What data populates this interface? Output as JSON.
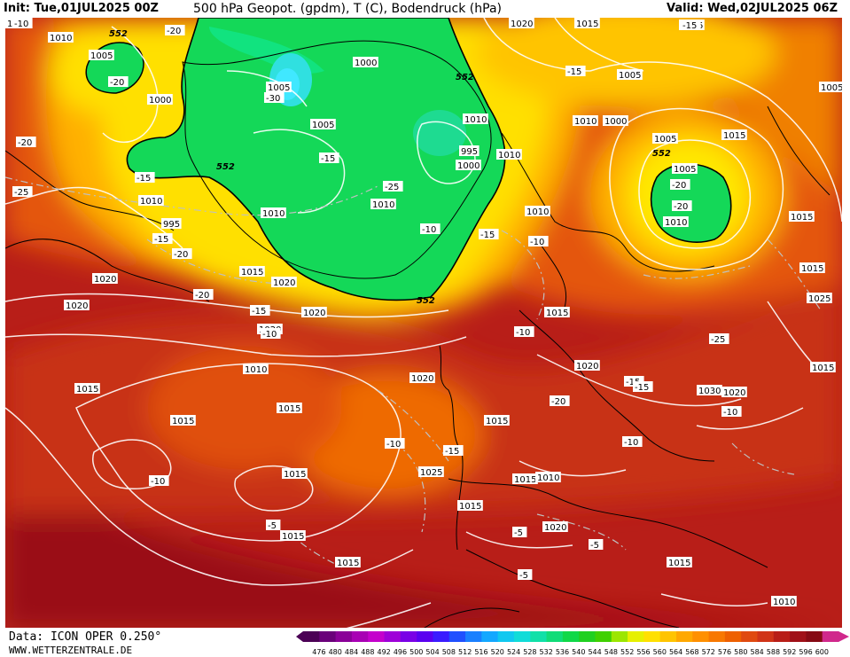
{
  "header": {
    "init": "Init: Tue,01JUL2025 00Z",
    "title": "500 hPa Geopot. (gpdm), T (C), Bodendruck (hPa)",
    "valid": "Valid: Wed,02JUL2025 06Z"
  },
  "footer": {
    "data_source": "Data: ICON OPER 0.250°",
    "website": "WWW.WETTERZENTRALE.DE"
  },
  "colorscale": {
    "ticks": [
      "476",
      "480",
      "484",
      "488",
      "492",
      "496",
      "500",
      "504",
      "508",
      "512",
      "516",
      "520",
      "524",
      "528",
      "532",
      "536",
      "540",
      "544",
      "548",
      "552",
      "556",
      "560",
      "564",
      "568",
      "572",
      "576",
      "580",
      "584",
      "588",
      "592",
      "596",
      "600"
    ],
    "colors": [
      "#4b0055",
      "#6a007a",
      "#8a0098",
      "#a800b4",
      "#c400cc",
      "#9e00d8",
      "#7a00e6",
      "#5a00f0",
      "#3a1cff",
      "#2050ff",
      "#1a80ff",
      "#14a8ff",
      "#10c8f0",
      "#10dcd8",
      "#10e0a8",
      "#10dc78",
      "#10d848",
      "#20d020",
      "#40d000",
      "#9ce600",
      "#e6f000",
      "#ffe000",
      "#ffc400",
      "#ffa800",
      "#ff9000",
      "#f87800",
      "#ee6000",
      "#e04a10",
      "#d03418",
      "#b81e18",
      "#a01018",
      "#860a14",
      "#d0288c"
    ],
    "contour_label": "552"
  },
  "pressure_labels": [
    "1010",
    "1005",
    "-20",
    "1020",
    "1015",
    "1000",
    "-30",
    "1005",
    "1000",
    "-20",
    "1005",
    "-15",
    "1005",
    "1015",
    "1005",
    "1010",
    "-20",
    "-10",
    "995",
    "1000",
    "1010",
    "-25",
    "-15",
    "995",
    "-25",
    "-15",
    "-15",
    "1010",
    "1000",
    "1005",
    "1005",
    "-20",
    "1015",
    "-20",
    "1010",
    "1010",
    "-15",
    "-20",
    "1010",
    "1010",
    "-10",
    "-15",
    "1010",
    "-10",
    "1015",
    "1015",
    "1020",
    "1015",
    "1020",
    "-20",
    "1020",
    "-15",
    "1020",
    "-10",
    "1015",
    "1005",
    "1025",
    "1020",
    "-25",
    "1010",
    "1015",
    "1020",
    "-10",
    "1020",
    "-15",
    "1015",
    "1015",
    "-20",
    "-15",
    "1030",
    "1020",
    "-10",
    "1015",
    "-10",
    "1015",
    "-15",
    "-10",
    "1015",
    "1025",
    "1015",
    "1010",
    "-10",
    "1015",
    "-5",
    "1020",
    "-5",
    "1015",
    "-5",
    "1015",
    "1015",
    "-5",
    "1010"
  ],
  "map_legend_colors": {
    "low_green": "#10dc50",
    "low_cyan": "#30e0e0",
    "mid_yellow": "#ffe800",
    "orange": "#f09000",
    "high_red": "#c82818",
    "highest_darkred": "#9a0a14"
  }
}
